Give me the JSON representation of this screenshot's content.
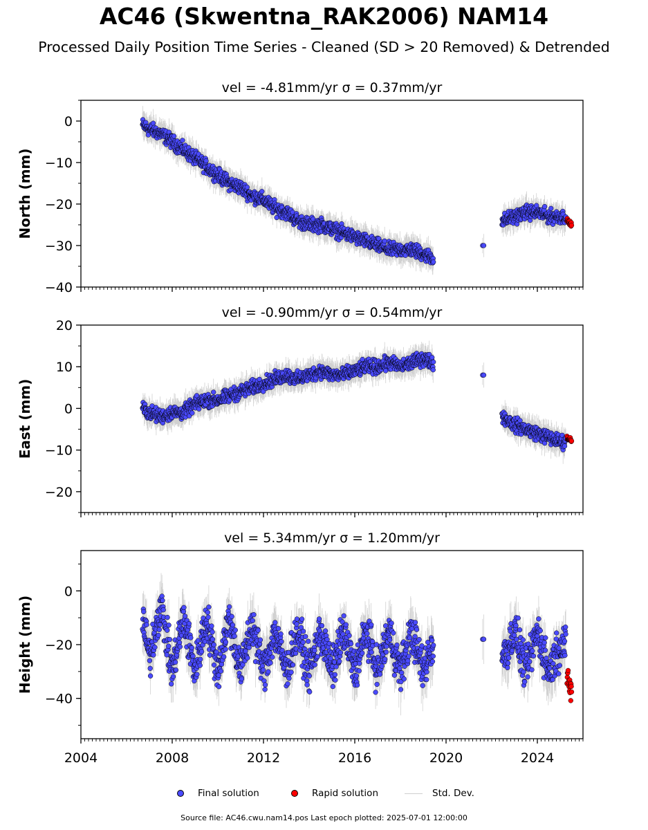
{
  "title": "AC46 (Skwentna_RAK2006) NAM14",
  "subtitle": "Processed Daily Position Time Series - Cleaned (SD > 20 Removed) & Detrended",
  "source_note": "Source file: AC46.cwu.nam14.pos  Last epoch plotted: 2025-07-01 12:00:00",
  "legend": {
    "final": "Final solution",
    "rapid": "Rapid solution",
    "std": "Std. Dev."
  },
  "colors": {
    "final": "#4a4aff",
    "rapid": "#ff0000",
    "std": "#c8c8c8",
    "edge": "#000000"
  },
  "chart_data": [
    {
      "type": "scatter",
      "title": "vel = -4.81mm/yr   σ = 0.37mm/yr",
      "ylabel": "North (mm)",
      "xlim": [
        2004.0,
        2026.0
      ],
      "ylim": [
        -40,
        5
      ],
      "yticks": [
        0,
        -10,
        -20,
        -30,
        -40
      ],
      "xticks": [
        2004,
        2008,
        2012,
        2016,
        2020,
        2024
      ],
      "series": [
        {
          "name": "Final solution",
          "x": [
            2006.7,
            2007.0,
            2007.5,
            2008.0,
            2008.5,
            2009.0,
            2009.5,
            2010.0,
            2010.5,
            2011.0,
            2011.5,
            2012.0,
            2012.5,
            2013.0,
            2013.5,
            2014.0,
            2014.5,
            2015.0,
            2015.5,
            2016.0,
            2016.5,
            2017.0,
            2017.5,
            2018.0,
            2018.5,
            2019.0,
            2019.4,
            2022.5,
            2023.0,
            2023.5,
            2024.0,
            2024.5,
            2025.0
          ],
          "y": [
            -1,
            -2,
            -3,
            -5,
            -7,
            -9,
            -11,
            -13,
            -15,
            -16,
            -18,
            -19,
            -21,
            -22,
            -24,
            -25,
            -25,
            -26,
            -27,
            -28,
            -29,
            -30,
            -31,
            -31,
            -31,
            -32,
            -33,
            -24,
            -23,
            -22,
            -22,
            -23,
            -23
          ]
        },
        {
          "name": "Rapid solution",
          "x": [
            2025.3,
            2025.4,
            2025.5
          ],
          "y": [
            -24,
            -24.5,
            -25
          ]
        }
      ]
    },
    {
      "type": "scatter",
      "title": "vel = -0.90mm/yr   σ = 0.54mm/yr",
      "ylabel": "East (mm)",
      "xlim": [
        2004.0,
        2026.0
      ],
      "ylim": [
        -25,
        20
      ],
      "yticks": [
        20,
        10,
        0,
        -10,
        -20
      ],
      "xticks": [
        2004,
        2008,
        2012,
        2016,
        2020,
        2024
      ],
      "series": [
        {
          "name": "Final solution",
          "x": [
            2006.7,
            2007.0,
            2007.5,
            2008.0,
            2008.5,
            2009.0,
            2009.5,
            2010.0,
            2010.5,
            2011.0,
            2011.5,
            2012.0,
            2012.5,
            2013.0,
            2013.5,
            2014.0,
            2014.5,
            2015.0,
            2015.5,
            2016.0,
            2016.5,
            2017.0,
            2017.5,
            2018.0,
            2018.5,
            2019.0,
            2019.4,
            2022.5,
            2023.0,
            2023.5,
            2024.0,
            2024.5,
            2025.0
          ],
          "y": [
            0,
            -1,
            -2,
            -1,
            -1,
            1,
            2,
            2,
            3,
            4,
            5,
            6,
            7,
            8,
            7,
            8,
            9,
            8,
            8,
            9,
            10,
            10,
            11,
            10,
            11,
            12,
            11,
            -2,
            -4,
            -5,
            -6,
            -7,
            -8
          ]
        },
        {
          "name": "Rapid solution",
          "x": [
            2025.3,
            2025.4,
            2025.5
          ],
          "y": [
            -7,
            -7.5,
            -8
          ]
        }
      ]
    },
    {
      "type": "scatter",
      "title": "vel = 5.34mm/yr   σ = 1.20mm/yr",
      "ylabel": "Height (mm)",
      "xlim": [
        2004.0,
        2026.0
      ],
      "ylim": [
        -55,
        15
      ],
      "yticks": [
        0,
        -20,
        -40
      ],
      "xticks": [
        2004,
        2008,
        2012,
        2016,
        2020,
        2024
      ],
      "xticklabels": [
        "2004",
        "2008",
        "2012",
        "2016",
        "2020",
        "2024"
      ],
      "series": [
        {
          "name": "Final solution",
          "x": [
            2006.7,
            2007.0,
            2007.5,
            2008.0,
            2008.5,
            2009.0,
            2009.5,
            2010.0,
            2010.5,
            2011.0,
            2011.5,
            2012.0,
            2012.5,
            2013.0,
            2013.5,
            2014.0,
            2014.5,
            2015.0,
            2015.5,
            2016.0,
            2016.5,
            2017.0,
            2017.5,
            2018.0,
            2018.5,
            2019.0,
            2019.4,
            2022.5,
            2023.0,
            2023.5,
            2024.0,
            2024.5,
            2025.0
          ],
          "y": [
            -10,
            -25,
            -5,
            -30,
            -10,
            -30,
            -10,
            -30,
            -10,
            -30,
            -12,
            -30,
            -15,
            -30,
            -15,
            -30,
            -15,
            -30,
            -15,
            -30,
            -15,
            -30,
            -15,
            -30,
            -15,
            -30,
            -20,
            -25,
            -15,
            -30,
            -15,
            -30,
            -20
          ]
        },
        {
          "name": "Rapid solution",
          "x": [
            2025.3,
            2025.4,
            2025.5
          ],
          "y": [
            -30,
            -35,
            -38
          ]
        }
      ]
    }
  ]
}
